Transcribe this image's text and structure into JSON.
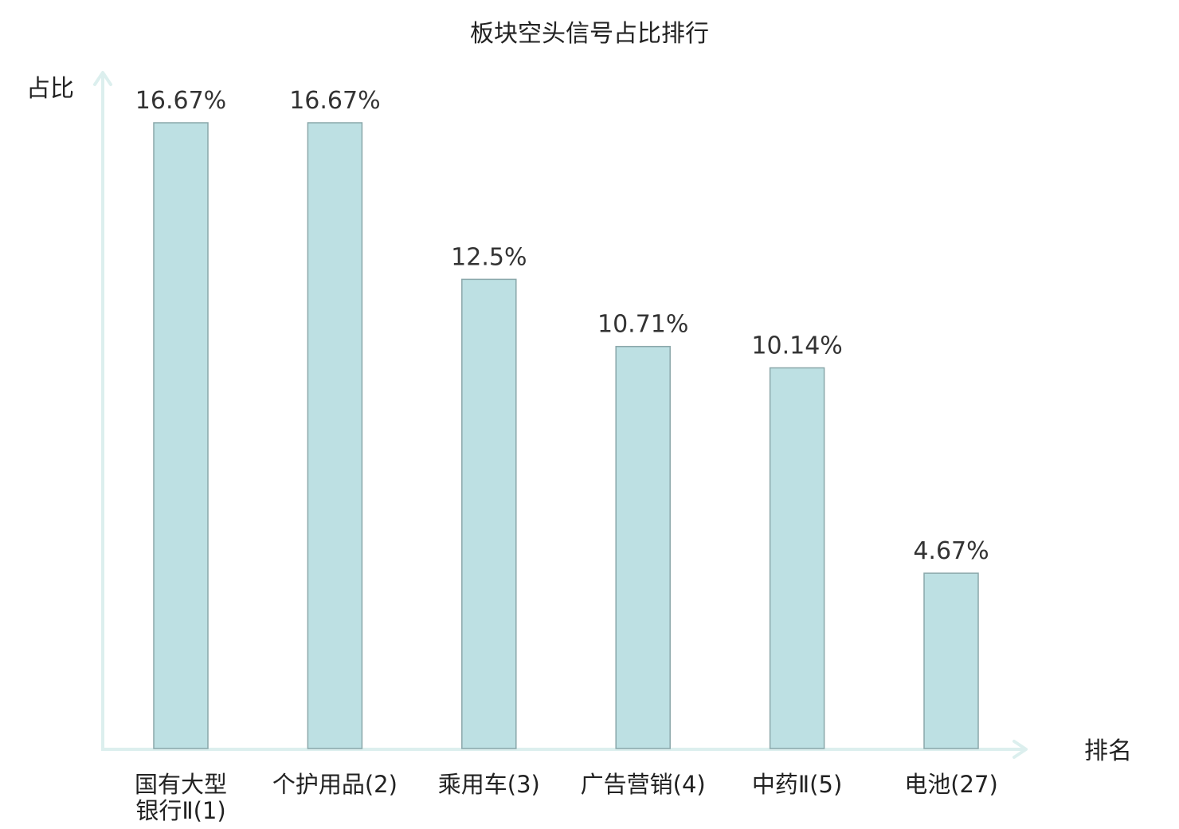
{
  "chart_data": {
    "type": "bar",
    "title": "板块空头信号占比排行",
    "xlabel": "排名",
    "ylabel": "占比",
    "categories": [
      {
        "label": "国有大型银行Ⅱ(1)",
        "lines": [
          "国有大型",
          "银行Ⅱ(1)"
        ],
        "highlight": false
      },
      {
        "label": "个护用品(2)",
        "lines": [
          "个护用品(2)"
        ],
        "highlight": false
      },
      {
        "label": "乘用车(3)",
        "lines": [
          "乘用车(3)"
        ],
        "highlight": false
      },
      {
        "label": "广告营销(4)",
        "lines": [
          "广告营销(4)"
        ],
        "highlight": false
      },
      {
        "label": "中药Ⅱ(5)",
        "lines": [
          "中药Ⅱ(5)"
        ],
        "highlight": false
      },
      {
        "label": "电池(27)",
        "lines": [
          "电池(27)"
        ],
        "highlight": true
      }
    ],
    "values": [
      16.67,
      16.67,
      12.5,
      10.71,
      10.14,
      4.67
    ],
    "value_labels": [
      "16.67%",
      "16.67%",
      "12.5%",
      "10.71%",
      "10.14%",
      "4.67%"
    ],
    "unit": "%",
    "ylim": [
      0,
      16.67
    ],
    "grid": false,
    "legend": "none",
    "colors": {
      "bar_fill": "#bde0e3",
      "bar_stroke": "#8aa7aa",
      "axis": "#dcefee",
      "text": "#222222",
      "value_text": "#333333",
      "highlight_text": "#e0191b"
    }
  }
}
